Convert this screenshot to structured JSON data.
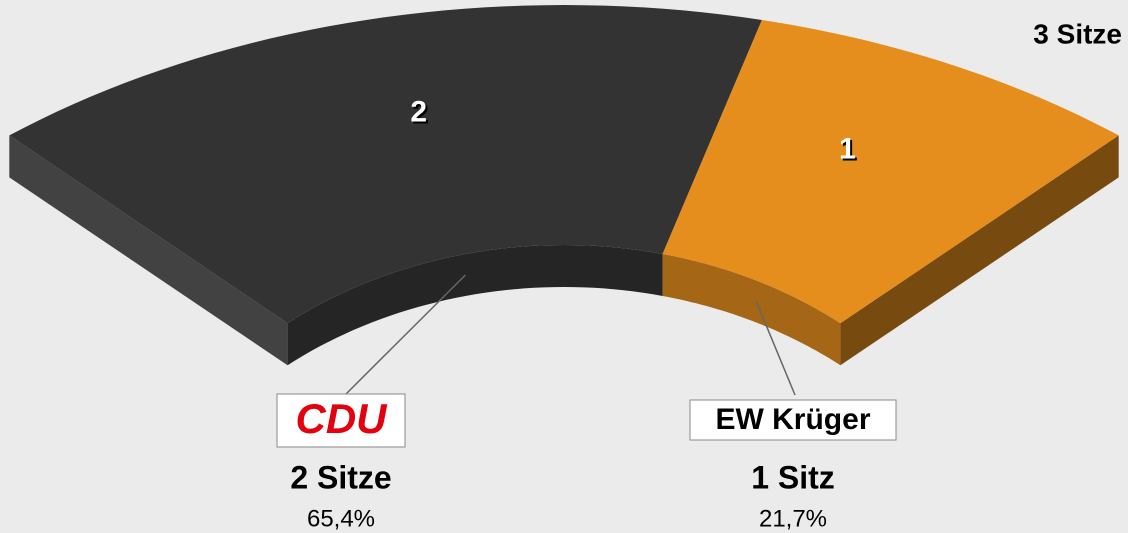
{
  "chart_data": {
    "type": "seats",
    "total": 3,
    "total_label": "3 Sitze",
    "categories": [
      "CDU",
      "EW Krüger"
    ],
    "values": [
      2,
      1
    ],
    "value_labels": [
      "2 Sitze",
      "1 Sitz"
    ],
    "shares": [
      65.4,
      21.7
    ],
    "share_labels": [
      "65,4%",
      "21,7%"
    ],
    "colors": [
      "#333333",
      "#e58e1e"
    ]
  }
}
